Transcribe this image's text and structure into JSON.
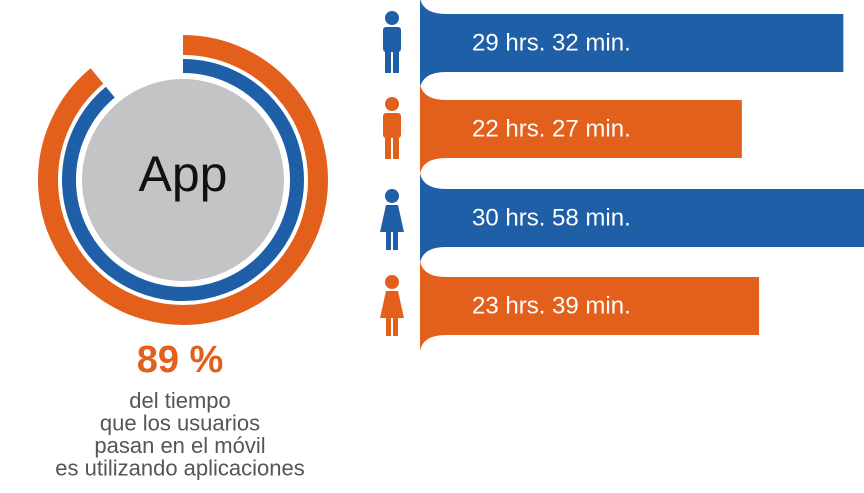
{
  "chart_data": [
    {
      "type": "donut",
      "center_label": "App",
      "value": 89,
      "value_label": "89 %",
      "colors": [
        "#e35f1c",
        "#1f5fa8",
        "#c4c4c6"
      ],
      "caption": [
        "del tiempo",
        "que los usuarios",
        "pasan en el móvil",
        "es utilizando aplicaciones"
      ]
    },
    {
      "type": "bar",
      "orientation": "horizontal",
      "values": [
        29.53,
        22.45,
        30.97,
        23.65
      ],
      "value_labels": [
        "29 hrs. 32 min.",
        "22 hrs. 27 min.",
        "30 hrs. 58 min.",
        "23 hrs. 39 min."
      ],
      "colors": [
        "#1f5fa8",
        "#e35f1c",
        "#1f5fa8",
        "#e35f1c"
      ]
    }
  ]
}
